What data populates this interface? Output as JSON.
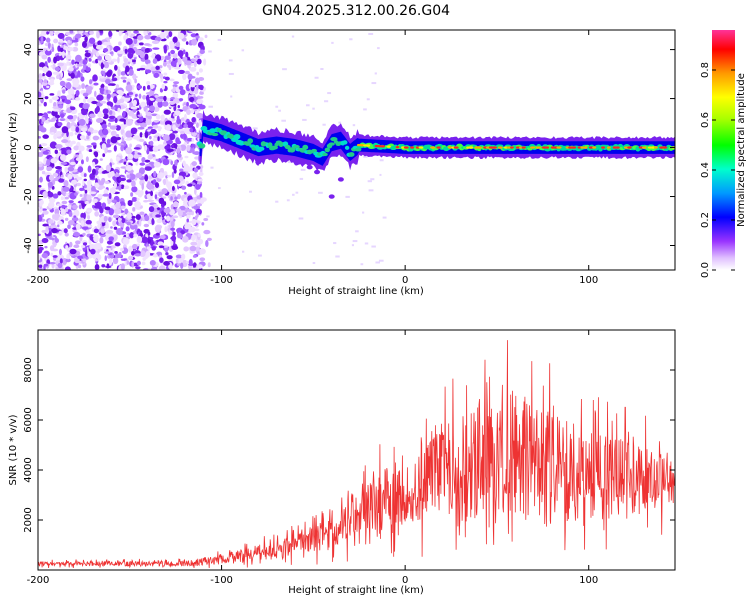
{
  "chart_data": [
    {
      "type": "heatmap",
      "title": "GN04.2025.312.00.26.G04",
      "xlabel": "Height of straight line (km)",
      "ylabel": "Frequency (Hz)",
      "xlim": [
        -200,
        147
      ],
      "ylim": [
        -50,
        48
      ],
      "xticks": [
        "-200",
        "-100",
        "0",
        "100"
      ],
      "yticks": [
        "-40",
        "-20",
        "0",
        "20",
        "40"
      ],
      "description_points": {
        "noise_region_km": [
          -200,
          -110
        ],
        "signal_ridge": [
          {
            "x": -110,
            "y": 8
          },
          {
            "x": -100,
            "y": 6
          },
          {
            "x": -90,
            "y": 3
          },
          {
            "x": -80,
            "y": 0
          },
          {
            "x": -70,
            "y": 1
          },
          {
            "x": -60,
            "y": 0
          },
          {
            "x": -50,
            "y": -2
          },
          {
            "x": -45,
            "y": -4
          },
          {
            "x": -40,
            "y": 2
          },
          {
            "x": -35,
            "y": 3
          },
          {
            "x": -30,
            "y": -2
          },
          {
            "x": -25,
            "y": 1
          },
          {
            "x": 0,
            "y": 0
          },
          {
            "x": 50,
            "y": 0
          },
          {
            "x": 100,
            "y": 0
          },
          {
            "x": 147,
            "y": 0
          }
        ]
      },
      "colorbar": {
        "label": "Normalized spectral amplitude",
        "ticks": [
          "0.0",
          "0.2",
          "0.4",
          "0.6",
          "0.8"
        ],
        "range": [
          0,
          0.96
        ]
      }
    },
    {
      "type": "line",
      "xlabel": "Height of straight line (km)",
      "ylabel": "SNR (10 * v/v)",
      "xlim": [
        -200,
        147
      ],
      "ylim": [
        0,
        9600
      ],
      "xticks": [
        "-200",
        "-100",
        "0",
        "100"
      ],
      "yticks": [
        "2000",
        "4000",
        "6000",
        "8000"
      ],
      "color": "#ee3333",
      "envelope": {
        "x": [
          -200,
          -120,
          -100,
          -80,
          -60,
          -40,
          -25,
          -15,
          -5,
          5,
          15,
          25,
          40,
          60,
          80,
          100,
          120,
          147
        ],
        "baseline": [
          250,
          250,
          450,
          700,
          1000,
          1500,
          2300,
          2800,
          3000,
          2600,
          4200,
          3800,
          4200,
          4400,
          4000,
          3800,
          3600,
          3500
        ],
        "peak": [
          400,
          450,
          800,
          1300,
          1800,
          2600,
          3700,
          5500,
          5100,
          4200,
          7200,
          7800,
          9000,
          9500,
          8200,
          7000,
          6500,
          5500
        ]
      }
    }
  ]
}
